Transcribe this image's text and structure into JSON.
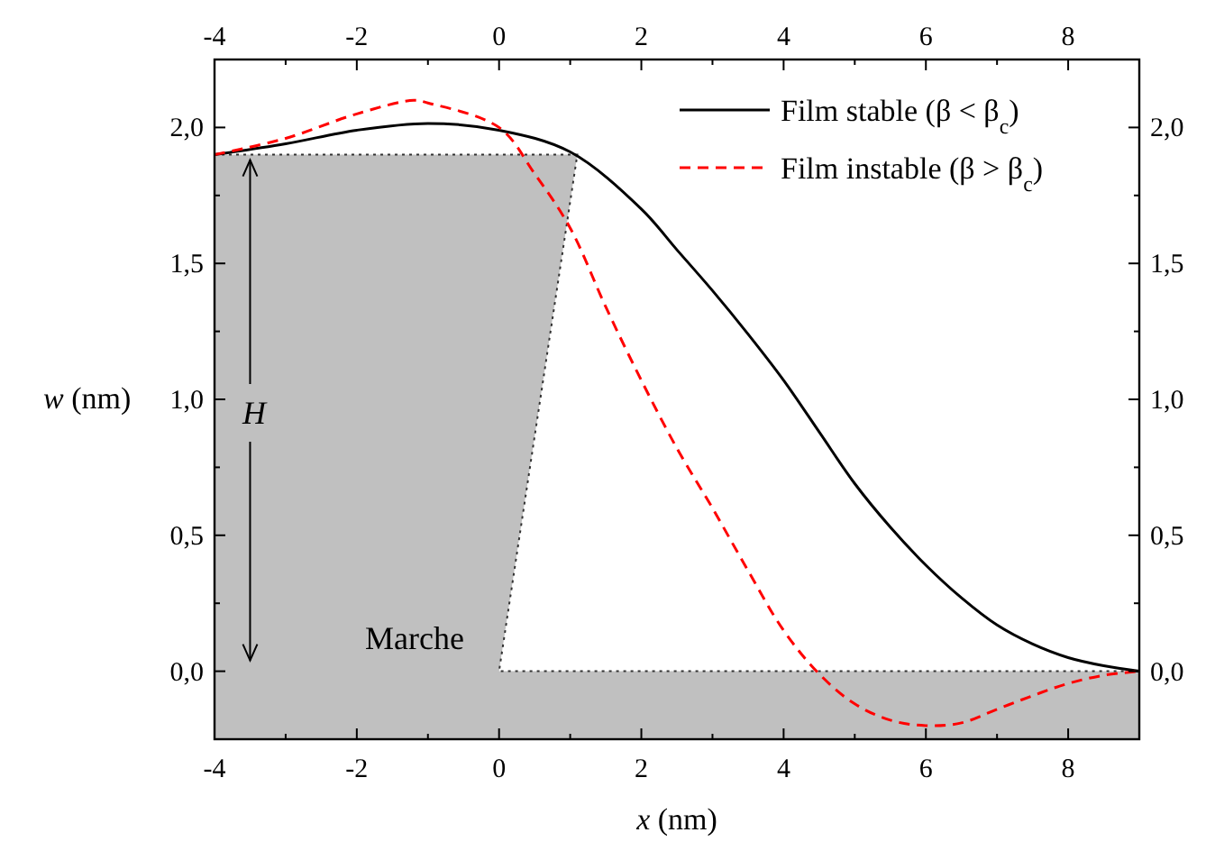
{
  "chart_data": {
    "type": "line",
    "xlabel": "x (nm)",
    "ylabel": "w (nm)",
    "xlim": [
      -4,
      9
    ],
    "xticks": [
      -4,
      {
        "value": -3,
        "label": null
      },
      -2,
      {
        "value": -1,
        "label": null
      },
      0,
      {
        "value": 1,
        "label": null
      },
      2,
      {
        "value": 3,
        "label": null
      },
      4,
      {
        "value": 5,
        "label": null
      },
      6,
      {
        "value": 7,
        "label": null
      },
      8,
      {
        "value": 9,
        "label": null
      }
    ],
    "x2lim": [
      -4,
      9
    ],
    "x2ticks": [
      -4,
      {
        "value": -3,
        "label": null
      },
      -2,
      {
        "value": -1,
        "label": null
      },
      0,
      {
        "value": 1,
        "label": null
      },
      2,
      {
        "value": 3,
        "label": null
      },
      4,
      {
        "value": 5,
        "label": null
      },
      6,
      {
        "value": 7,
        "label": null
      },
      8,
      {
        "value": 9,
        "label": null
      }
    ],
    "ylim": [
      -0.25,
      2.25
    ],
    "yticks": [
      {
        "value": -0.25,
        "label": null
      },
      {
        "value": 0,
        "label": "0,0"
      },
      {
        "value": 0.25,
        "label": null
      },
      {
        "value": 0.5,
        "label": "0,5"
      },
      {
        "value": 0.75,
        "label": null
      },
      {
        "value": 1,
        "label": "1,0"
      },
      {
        "value": 1.25,
        "label": null
      },
      {
        "value": 1.5,
        "label": "1,5"
      },
      {
        "value": 1.75,
        "label": null
      },
      {
        "value": 2,
        "label": "2,0"
      },
      {
        "value": 2.25,
        "label": null
      }
    ],
    "y2lim": [
      -0.25,
      2.25
    ],
    "y2ticks": [
      {
        "value": -0.25,
        "label": null
      },
      {
        "value": 0,
        "label": "0,0"
      },
      {
        "value": 0.25,
        "label": null
      },
      {
        "value": 0.5,
        "label": "0,5"
      },
      {
        "value": 0.75,
        "label": null
      },
      {
        "value": 1,
        "label": "1,0"
      },
      {
        "value": 1.25,
        "label": null
      },
      {
        "value": 1.5,
        "label": "1,5"
      },
      {
        "value": 1.75,
        "label": null
      },
      {
        "value": 2,
        "label": "2,0"
      },
      {
        "value": 2.25,
        "label": null
      }
    ],
    "legend": "top right",
    "grid": false,
    "series": [
      {
        "type": "area",
        "color": "#c0c0c0",
        "line_style": "dotted",
        "x": [
          -4,
          1.1,
          0,
          9,
          9,
          -4
        ],
        "values": [
          1.9,
          1.9,
          0,
          0,
          -0.25,
          -0.25
        ]
      },
      {
        "name": "Film stable (β < β$_{c}$)",
        "color": "#000000",
        "line_style": "solid",
        "x": [
          -4,
          -3,
          -2,
          -1,
          0,
          1,
          2,
          2.5,
          3,
          3.5,
          4,
          4.5,
          5,
          5.5,
          6,
          6.5,
          7,
          7.5,
          8,
          8.5,
          9
        ],
        "values": [
          1.9,
          1.94,
          1.99,
          2.015,
          1.99,
          1.91,
          1.7,
          1.55,
          1.4,
          1.24,
          1.07,
          0.88,
          0.69,
          0.53,
          0.39,
          0.27,
          0.17,
          0.1,
          0.05,
          0.02,
          0
        ]
      },
      {
        "name": "Film instable (β > β$_{c}$)",
        "color": "#ff0000",
        "line_style": "dashed",
        "x": [
          -4,
          -3,
          -2,
          -1.2,
          -1,
          0,
          0.5,
          1,
          1.5,
          2,
          2.5,
          3,
          3.5,
          4,
          4.5,
          5,
          5.5,
          6,
          6.5,
          7,
          7.5,
          8,
          8.5,
          9
        ],
        "values": [
          1.9,
          1.96,
          2.05,
          2.1,
          2.09,
          2.0,
          1.83,
          1.63,
          1.34,
          1.07,
          0.82,
          0.6,
          0.37,
          0.15,
          -0.01,
          -0.12,
          -0.18,
          -0.2,
          -0.19,
          -0.14,
          -0.09,
          -0.045,
          -0.015,
          0
        ]
      }
    ],
    "annotations": [
      {
        "text": "H",
        "x": -3.5,
        "y": 1.9
      },
      "Marche"
    ]
  }
}
